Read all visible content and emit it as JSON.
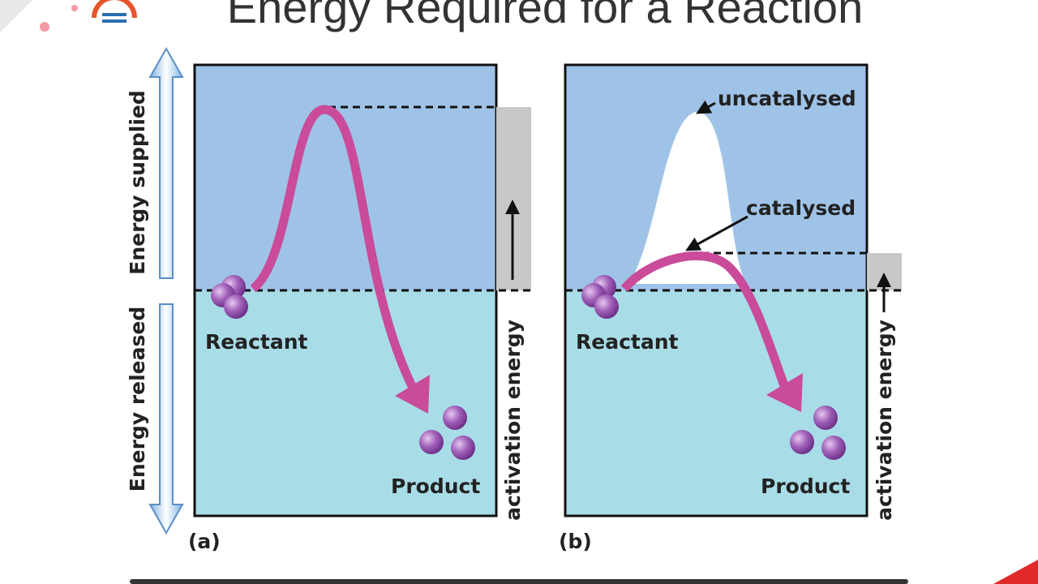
{
  "title": "Energy Required for a Reaction",
  "axis": {
    "supplied": "Energy supplied",
    "released": "Energy released"
  },
  "panels": [
    {
      "label": "(a)",
      "reactant": "Reactant",
      "product": "Product",
      "side_label": "activation energy"
    },
    {
      "label": "(b)",
      "reactant": "Reactant",
      "product": "Product",
      "side_label": "activation energy",
      "uncatalysed": "uncatalysed",
      "catalysed": "catalysed"
    }
  ]
}
